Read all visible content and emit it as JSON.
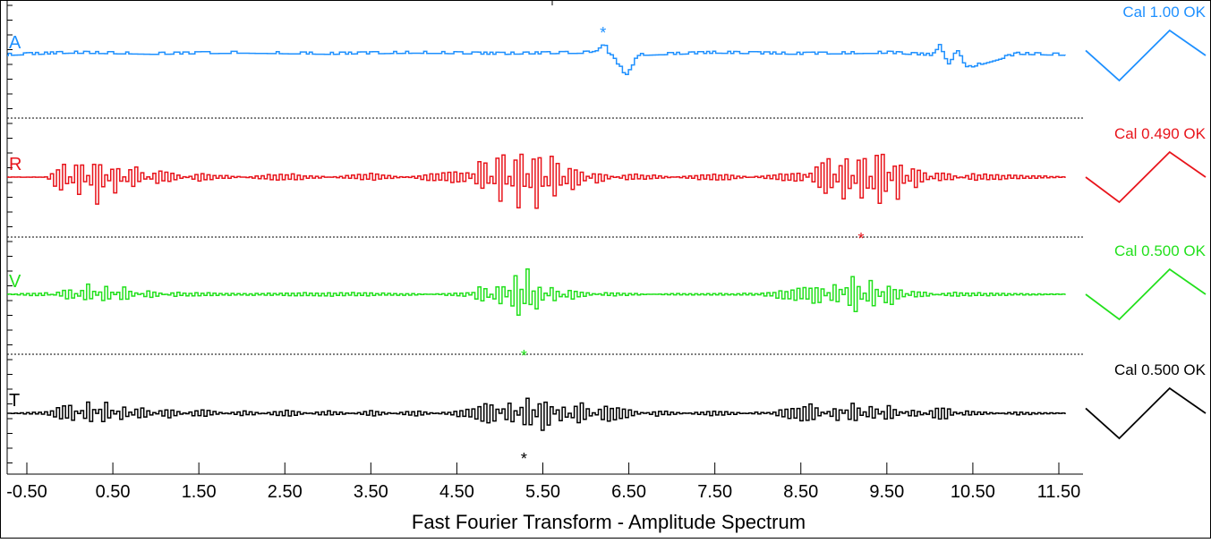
{
  "chart_data": {
    "type": "line",
    "title": "",
    "xlabel": "Fast Fourier Transform - Amplitude Spectrum",
    "ylabel": "",
    "xlim": [
      -0.75,
      11.62
    ],
    "x_ticks": [
      "-0.50",
      "0.50",
      "1.50",
      "2.50",
      "3.50",
      "4.50",
      "5.50",
      "6.50",
      "7.50",
      "8.50",
      "9.50",
      "10.50",
      "11.50"
    ],
    "x_tick_values": [
      -0.5,
      0.5,
      1.5,
      2.5,
      3.5,
      4.5,
      5.5,
      6.5,
      7.5,
      8.5,
      9.5,
      10.5,
      11.5
    ],
    "grid": false,
    "series": [
      {
        "name": "A",
        "color": "#1e90ff",
        "calibration": "Cal 1.00 OK",
        "marker_x": 6.2,
        "marker_side": "above",
        "x": [
          -0.75,
          0.0,
          1.0,
          2.0,
          3.0,
          4.0,
          5.0,
          6.0,
          6.15,
          6.2,
          6.25,
          6.35,
          6.45,
          6.6,
          7.5,
          8.5,
          9.5,
          10.0,
          10.1,
          10.2,
          10.3,
          10.4,
          11.0,
          11.62
        ],
        "values": [
          0.0,
          0.1,
          0.05,
          0.1,
          0.05,
          0.1,
          0.05,
          0.1,
          0.25,
          0.6,
          0.1,
          -0.35,
          -0.9,
          0.0,
          0.1,
          0.05,
          0.1,
          0.0,
          0.4,
          -0.5,
          0.3,
          -0.6,
          0.05,
          0.0
        ],
        "cal_shape": [
          0.2,
          -1.0,
          1.0,
          0.0
        ]
      },
      {
        "name": "R",
        "color": "#e8141b",
        "calibration": "Cal 0.490 OK",
        "marker_x": 9.2,
        "marker_side": "below",
        "x": [
          -0.75,
          -0.3,
          -0.1,
          0.1,
          0.3,
          0.5,
          0.7,
          1.0,
          1.5,
          2.5,
          3.5,
          4.6,
          4.8,
          5.0,
          5.2,
          5.4,
          5.6,
          5.8,
          6.1,
          6.5,
          7.5,
          8.5,
          8.8,
          9.0,
          9.2,
          9.4,
          9.6,
          9.8,
          10.1,
          10.5,
          11.62
        ],
        "values": [
          0.0,
          0.0,
          0.4,
          -0.55,
          0.7,
          -0.45,
          0.35,
          -0.2,
          0.1,
          -0.1,
          0.1,
          -0.2,
          0.6,
          -0.85,
          0.9,
          -1.0,
          0.7,
          -0.4,
          0.15,
          -0.1,
          0.1,
          -0.15,
          0.6,
          -0.8,
          0.95,
          -1.0,
          0.6,
          -0.35,
          0.15,
          -0.1,
          0.0
        ],
        "cal_shape": [
          0.0,
          -1.0,
          1.0,
          0.0
        ]
      },
      {
        "name": "V",
        "color": "#22e01c",
        "calibration": "Cal 0.500 OK",
        "marker_x": 5.28,
        "marker_side": "below",
        "x": [
          -0.75,
          -0.3,
          0.0,
          0.2,
          0.4,
          0.6,
          0.9,
          1.2,
          2.0,
          3.0,
          4.0,
          4.6,
          4.8,
          5.0,
          5.2,
          5.3,
          5.4,
          5.6,
          5.8,
          6.2,
          7.0,
          8.0,
          8.7,
          8.9,
          9.1,
          9.3,
          9.5,
          9.8,
          10.2,
          11.62
        ],
        "values": [
          0.0,
          0.05,
          -0.15,
          0.3,
          -0.25,
          0.2,
          -0.1,
          0.05,
          0.02,
          0.05,
          0.02,
          -0.05,
          0.3,
          -0.4,
          0.7,
          -0.9,
          0.45,
          -0.25,
          0.15,
          -0.05,
          0.02,
          0.02,
          0.25,
          -0.35,
          0.55,
          -0.4,
          0.3,
          -0.1,
          0.05,
          0.0
        ],
        "cal_shape": [
          0.0,
          -1.0,
          1.0,
          0.0
        ]
      },
      {
        "name": "T",
        "color": "#000000",
        "calibration": "Cal 0.500 OK",
        "marker_x": 5.28,
        "marker_side": "below",
        "x": [
          -0.75,
          -0.3,
          0.0,
          0.2,
          0.4,
          0.6,
          0.8,
          1.1,
          1.5,
          2.0,
          2.5,
          3.0,
          3.5,
          4.0,
          4.6,
          4.9,
          5.1,
          5.3,
          5.5,
          5.7,
          5.9,
          6.2,
          6.8,
          7.5,
          8.0,
          8.6,
          8.9,
          9.1,
          9.3,
          9.5,
          9.8,
          10.1,
          10.4,
          11.0,
          11.62
        ],
        "values": [
          0.0,
          0.05,
          0.35,
          -0.45,
          0.45,
          -0.3,
          0.3,
          -0.2,
          0.15,
          -0.1,
          0.12,
          -0.1,
          0.1,
          -0.1,
          0.15,
          0.4,
          -0.5,
          0.7,
          -0.8,
          0.5,
          -0.55,
          0.35,
          -0.1,
          0.1,
          -0.05,
          0.35,
          -0.3,
          0.45,
          -0.35,
          0.3,
          -0.2,
          0.3,
          -0.1,
          0.05,
          0.0
        ],
        "cal_shape": [
          0.2,
          -1.0,
          1.0,
          0.0
        ]
      }
    ]
  }
}
